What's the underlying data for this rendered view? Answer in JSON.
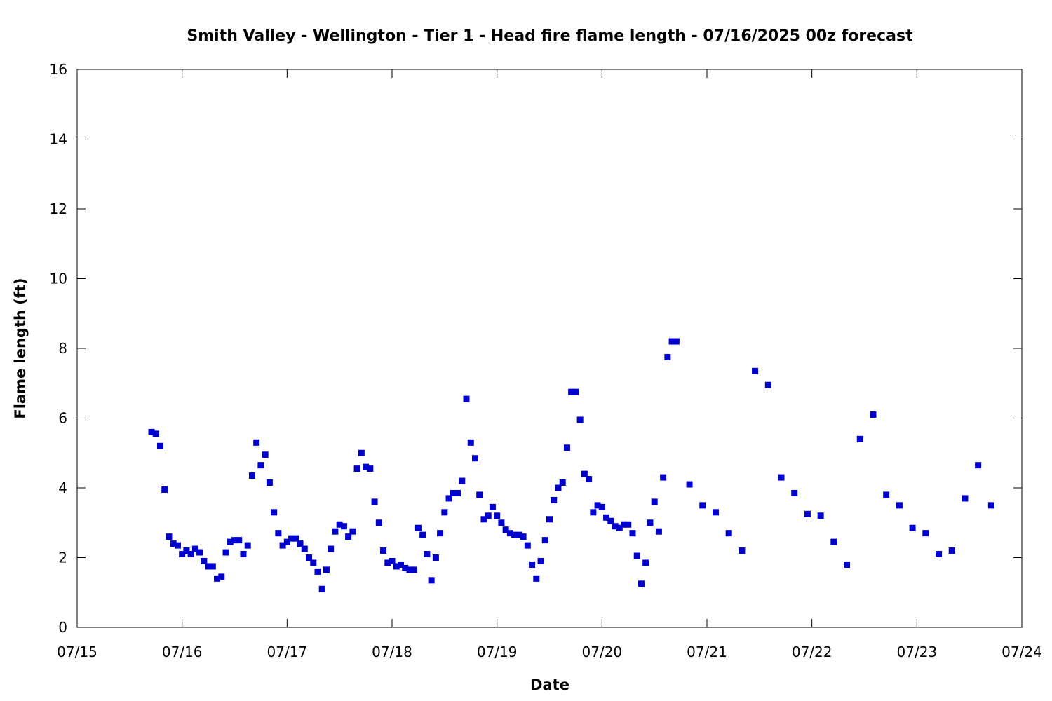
{
  "chart_data": {
    "type": "scatter",
    "title": "Smith Valley - Wellington - Tier 1 - Head fire flame length - 07/16/2025 00z forecast",
    "xlabel": "Date",
    "ylabel": "Flame length (ft)",
    "x_ticks": [
      "07/15",
      "07/16",
      "07/17",
      "07/18",
      "07/19",
      "07/20",
      "07/21",
      "07/22",
      "07/23",
      "07/24"
    ],
    "y_ticks": [
      0,
      2,
      4,
      6,
      8,
      10,
      12,
      14,
      16
    ],
    "xlim": [
      "07/15",
      "07/24"
    ],
    "ylim": [
      0,
      16
    ],
    "grid": false,
    "marker_color": "#0000cc",
    "series": [
      {
        "x": [
          "07/15 17:00",
          "07/15 18:00",
          "07/15 19:00",
          "07/15 20:00",
          "07/15 21:00",
          "07/15 22:00",
          "07/15 23:00",
          "07/16 00:00",
          "07/16 01:00",
          "07/16 02:00",
          "07/16 03:00",
          "07/16 04:00",
          "07/16 05:00",
          "07/16 06:00",
          "07/16 07:00",
          "07/16 08:00",
          "07/16 09:00",
          "07/16 10:00",
          "07/16 11:00",
          "07/16 12:00",
          "07/16 13:00",
          "07/16 14:00",
          "07/16 15:00",
          "07/16 16:00",
          "07/16 17:00",
          "07/16 18:00",
          "07/16 19:00",
          "07/16 20:00",
          "07/16 21:00",
          "07/16 22:00",
          "07/16 23:00",
          "07/17 00:00",
          "07/17 01:00",
          "07/17 02:00",
          "07/17 03:00",
          "07/17 04:00",
          "07/17 05:00",
          "07/17 06:00",
          "07/17 07:00",
          "07/17 08:00",
          "07/17 09:00",
          "07/17 10:00",
          "07/17 11:00",
          "07/17 12:00",
          "07/17 13:00",
          "07/17 14:00",
          "07/17 15:00",
          "07/17 16:00",
          "07/17 17:00",
          "07/17 18:00",
          "07/17 19:00",
          "07/17 20:00",
          "07/17 21:00",
          "07/17 22:00",
          "07/17 23:00",
          "07/18 00:00",
          "07/18 01:00",
          "07/18 02:00",
          "07/18 03:00",
          "07/18 04:00",
          "07/18 05:00",
          "07/18 06:00",
          "07/18 07:00",
          "07/18 08:00",
          "07/18 09:00",
          "07/18 10:00",
          "07/18 11:00",
          "07/18 12:00",
          "07/18 13:00",
          "07/18 14:00",
          "07/18 15:00",
          "07/18 16:00",
          "07/18 17:00",
          "07/18 18:00",
          "07/18 19:00",
          "07/18 20:00",
          "07/18 21:00",
          "07/18 22:00",
          "07/18 23:00",
          "07/19 00:00",
          "07/19 01:00",
          "07/19 02:00",
          "07/19 03:00",
          "07/19 04:00",
          "07/19 05:00",
          "07/19 06:00",
          "07/19 07:00",
          "07/19 08:00",
          "07/19 09:00",
          "07/19 10:00",
          "07/19 11:00",
          "07/19 12:00",
          "07/19 13:00",
          "07/19 14:00",
          "07/19 15:00",
          "07/19 16:00",
          "07/19 17:00",
          "07/19 18:00",
          "07/19 19:00",
          "07/19 20:00",
          "07/19 21:00",
          "07/19 22:00",
          "07/19 23:00",
          "07/20 00:00",
          "07/20 01:00",
          "07/20 02:00",
          "07/20 03:00",
          "07/20 04:00",
          "07/20 05:00",
          "07/20 06:00",
          "07/20 07:00",
          "07/20 08:00",
          "07/20 09:00",
          "07/20 10:00",
          "07/20 11:00",
          "07/20 12:00",
          "07/20 13:00",
          "07/20 14:00",
          "07/20 15:00",
          "07/20 16:00",
          "07/20 17:00",
          "07/20 20:00",
          "07/20 23:00",
          "07/21 02:00",
          "07/21 05:00",
          "07/21 08:00",
          "07/21 11:00",
          "07/21 14:00",
          "07/21 17:00",
          "07/21 20:00",
          "07/21 23:00",
          "07/22 02:00",
          "07/22 05:00",
          "07/22 08:00",
          "07/22 11:00",
          "07/22 14:00",
          "07/22 17:00",
          "07/22 20:00",
          "07/22 23:00",
          "07/23 02:00",
          "07/23 05:00",
          "07/23 08:00",
          "07/23 11:00",
          "07/23 14:00",
          "07/23 17:00"
        ],
        "y": [
          5.6,
          5.55,
          5.2,
          3.95,
          2.6,
          2.4,
          2.35,
          2.1,
          2.2,
          2.1,
          2.25,
          2.15,
          1.9,
          1.75,
          1.75,
          1.4,
          1.45,
          2.15,
          2.45,
          2.5,
          2.5,
          2.1,
          2.35,
          4.35,
          5.3,
          4.65,
          4.95,
          4.15,
          3.3,
          2.7,
          2.35,
          2.45,
          2.55,
          2.55,
          2.4,
          2.25,
          2.0,
          1.85,
          1.6,
          1.1,
          1.65,
          2.25,
          2.75,
          2.95,
          2.9,
          2.6,
          2.75,
          4.55,
          5.0,
          4.6,
          4.55,
          3.6,
          3.0,
          2.2,
          1.85,
          1.9,
          1.75,
          1.8,
          1.7,
          1.65,
          1.65,
          2.85,
          2.65,
          2.1,
          1.35,
          2.0,
          2.7,
          3.3,
          3.7,
          3.85,
          3.85,
          4.2,
          6.55,
          5.3,
          4.85,
          3.8,
          3.1,
          3.2,
          3.45,
          3.2,
          3.0,
          2.8,
          2.7,
          2.65,
          2.65,
          2.6,
          2.35,
          1.8,
          1.4,
          1.9,
          2.5,
          3.1,
          3.65,
          4.0,
          4.15,
          5.15,
          6.75,
          6.75,
          5.95,
          4.4,
          4.25,
          3.3,
          3.5,
          3.45,
          3.15,
          3.05,
          2.9,
          2.85,
          2.95,
          2.95,
          2.7,
          2.05,
          1.25,
          1.85,
          3.0,
          3.6,
          2.75,
          4.3,
          7.75,
          8.2,
          8.2,
          4.1,
          3.5,
          3.3,
          2.7,
          2.2,
          7.35,
          6.95,
          4.3,
          3.85,
          3.25,
          3.2,
          2.45,
          1.8,
          5.4,
          6.1,
          3.8,
          3.5,
          2.85,
          2.7,
          2.1,
          2.2,
          3.7,
          4.65,
          3.5
        ]
      }
    ]
  }
}
